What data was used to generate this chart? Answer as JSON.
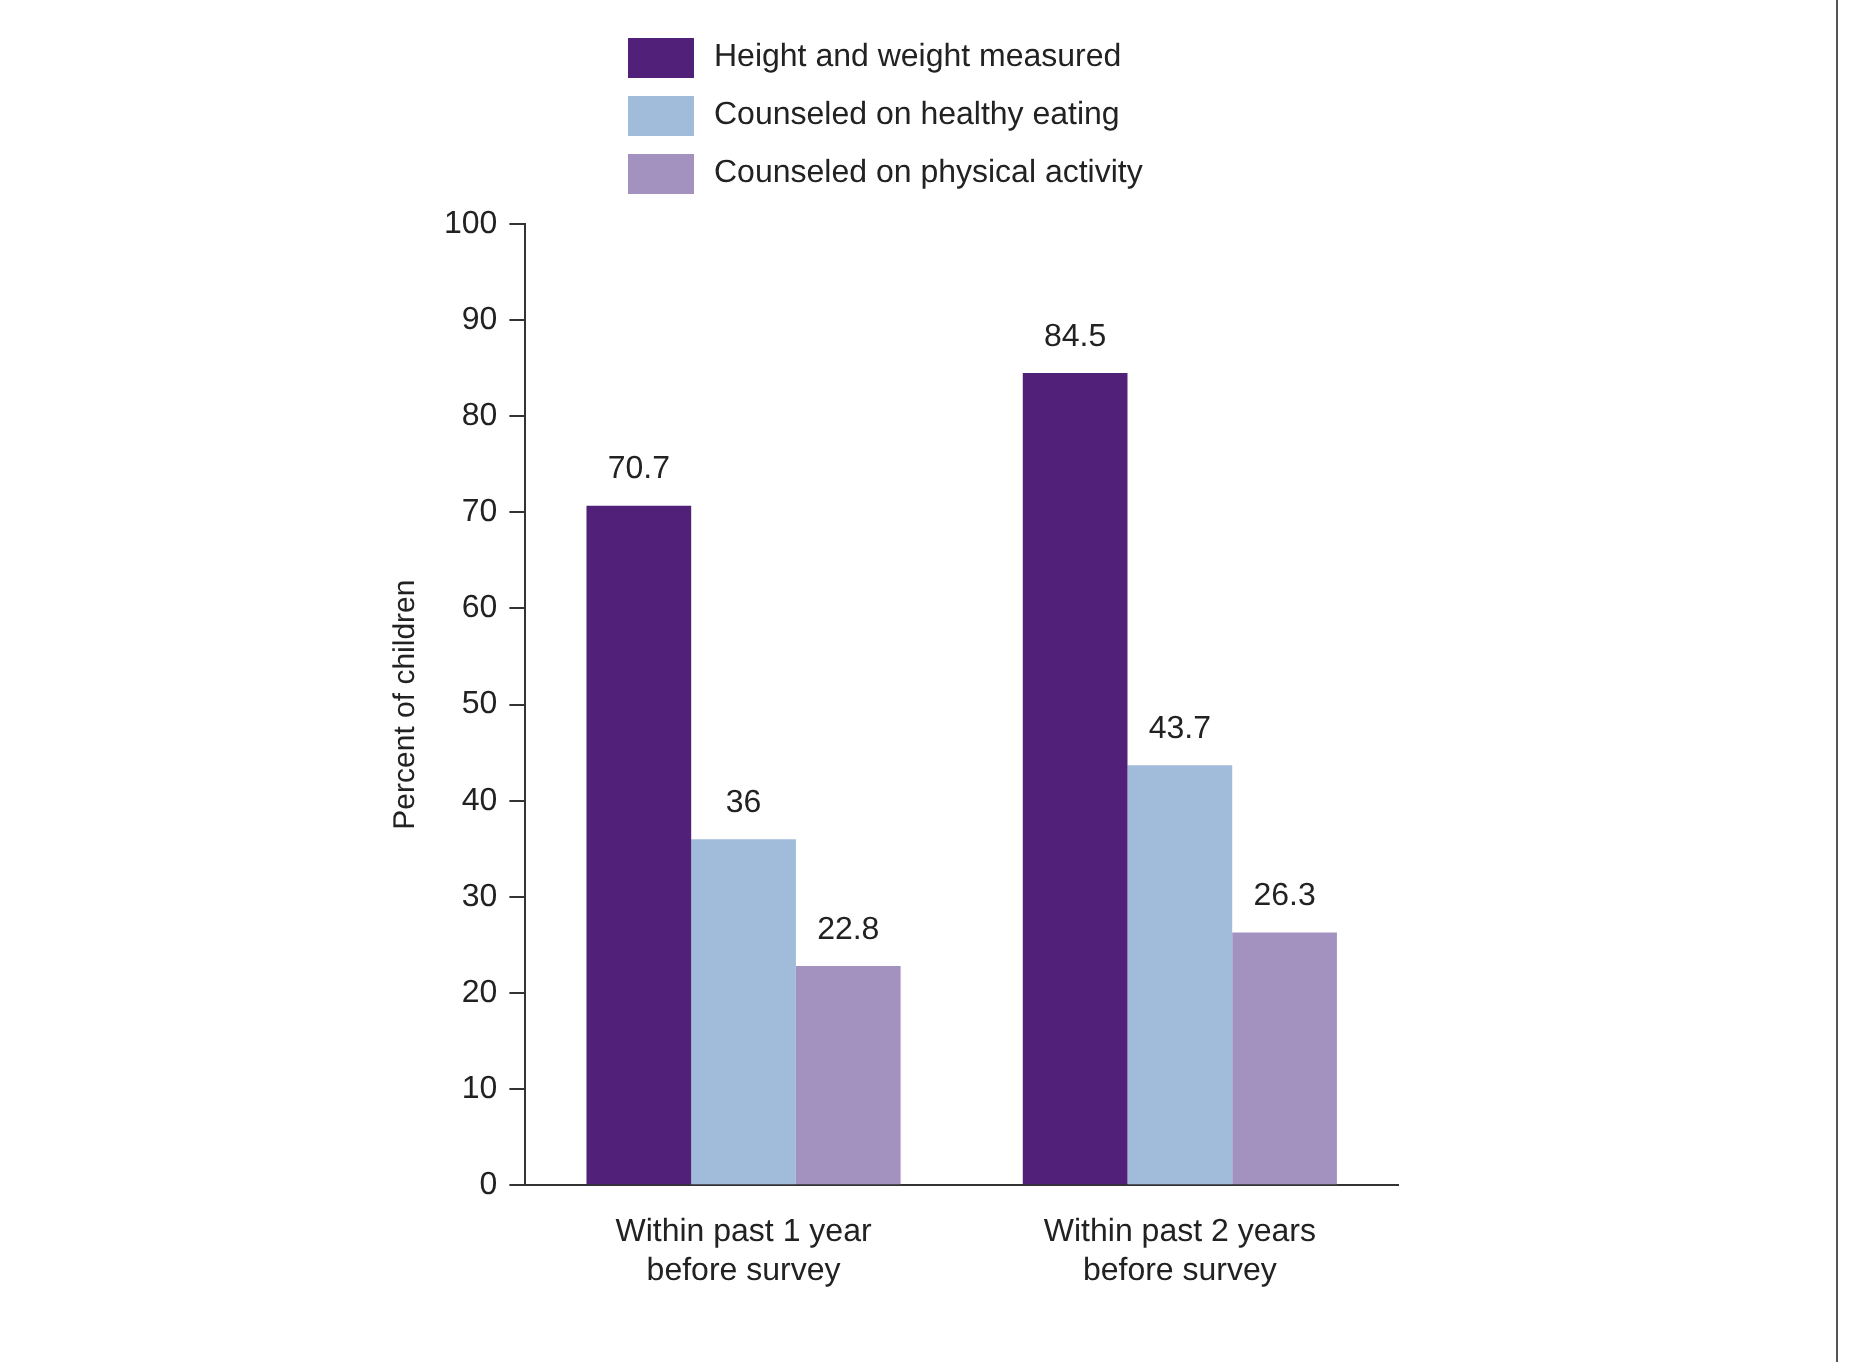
{
  "chart_data": {
    "type": "bar",
    "ylabel": "Percent of children",
    "categories": [
      "Within past 1 year before survey",
      "Within past 2 years before survey"
    ],
    "series": [
      {
        "name": "Height and weight measured",
        "color": "#51217a",
        "values": [
          70.7,
          84.5
        ]
      },
      {
        "name": "Counseled on healthy eating",
        "color": "#a1bbdb",
        "values": [
          36,
          43.7
        ]
      },
      {
        "name": "Counseled on physical activity",
        "color": "#a391c0",
        "values": [
          22.8,
          26.3
        ]
      }
    ],
    "ylim": [
      0,
      100
    ],
    "yticks": [
      0,
      10,
      20,
      30,
      40,
      50,
      60,
      70,
      80,
      90,
      100
    ],
    "grid": false,
    "legend": "top",
    "data_labels": true
  }
}
